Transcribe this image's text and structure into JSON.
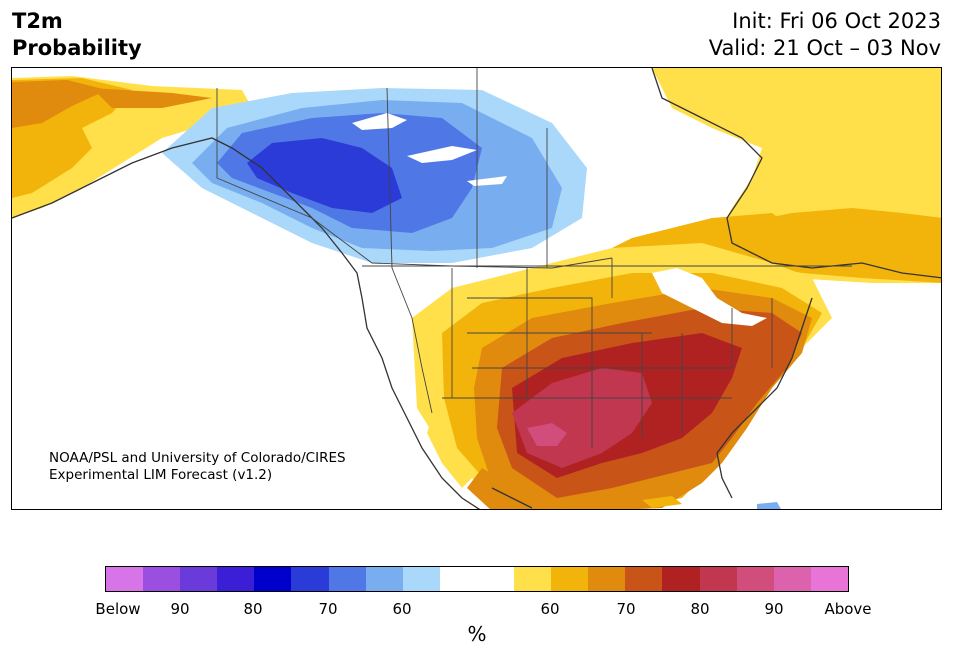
{
  "title": {
    "variable": "T2m",
    "quantity": "Probability",
    "init": "Init: Fri 06 Oct 2023",
    "valid": "Valid: 21 Oct – 03 Nov"
  },
  "credit": {
    "line1": "NOAA/PSL and University of Colorado/CIRES",
    "line2": "Experimental LIM Forecast (v1.2)"
  },
  "colorbar": {
    "unit": "%",
    "segments": [
      "#d774e8",
      "#9b4fe0",
      "#6a3bda",
      "#3a1fd6",
      "#0000cc",
      "#2a3bd8",
      "#5077e6",
      "#78aef0",
      "#aad8fa",
      "#ffffff",
      "#ffffff",
      "#ffe04a",
      "#f2b40a",
      "#e08a0e",
      "#c95418",
      "#b02222",
      "#c0374f",
      "#d04d7c",
      "#dd62ae",
      "#e874d8"
    ],
    "ticks": [
      "Below",
      "90",
      "80",
      "70",
      "60",
      "60",
      "70",
      "80",
      "90",
      "Above"
    ]
  },
  "legend_colors": {
    "below_60": "#aad8fa",
    "below_70": "#78aef0",
    "below_80": "#2a3bd8",
    "above_60": "#ffe04a",
    "above_70": "#e08a0e",
    "above_80": "#b02222",
    "above_90": "#d04d7c"
  }
}
